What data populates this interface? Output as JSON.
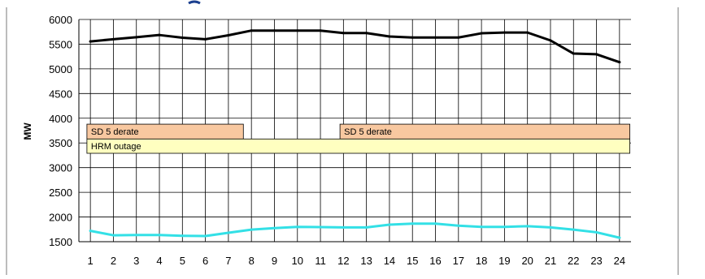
{
  "chart_data": {
    "type": "line",
    "title": "",
    "xlabel": "",
    "ylabel": "MW",
    "x": [
      1,
      2,
      3,
      4,
      5,
      6,
      7,
      8,
      9,
      10,
      11,
      12,
      13,
      14,
      15,
      16,
      17,
      18,
      19,
      20,
      21,
      22,
      23,
      24
    ],
    "ylim": [
      1500,
      6000
    ],
    "yticks": [
      1500,
      2000,
      2500,
      3000,
      3500,
      4000,
      4500,
      5000,
      5500,
      6000
    ],
    "grid": true,
    "legend": "none",
    "series": [
      {
        "color": "#000000",
        "values": [
          5555,
          5600,
          5640,
          5685,
          5630,
          5600,
          5680,
          5775,
          5775,
          5775,
          5775,
          5725,
          5725,
          5655,
          5635,
          5635,
          5635,
          5720,
          5735,
          5735,
          5575,
          5310,
          5295,
          5135
        ]
      },
      {
        "color": "#33e0e6",
        "values": [
          1720,
          1630,
          1635,
          1635,
          1620,
          1615,
          1680,
          1745,
          1775,
          1800,
          1795,
          1790,
          1790,
          1845,
          1865,
          1865,
          1825,
          1800,
          1800,
          1815,
          1790,
          1745,
          1690,
          1580
        ]
      }
    ],
    "annotations": [
      {
        "label": "SD 5 derate",
        "x_start": 0.85,
        "x_end": 7.65,
        "y_low": 3580,
        "y_high": 3880,
        "fill": "#f8c8a0"
      },
      {
        "label": "SD 5 derate",
        "x_start": 11.85,
        "x_end": 24.45,
        "y_low": 3580,
        "y_high": 3880,
        "fill": "#f8c8a0"
      },
      {
        "label": "HRM outage",
        "x_start": 0.85,
        "x_end": 24.45,
        "y_low": 3290,
        "y_high": 3580,
        "fill": "#ffffc0"
      }
    ]
  }
}
